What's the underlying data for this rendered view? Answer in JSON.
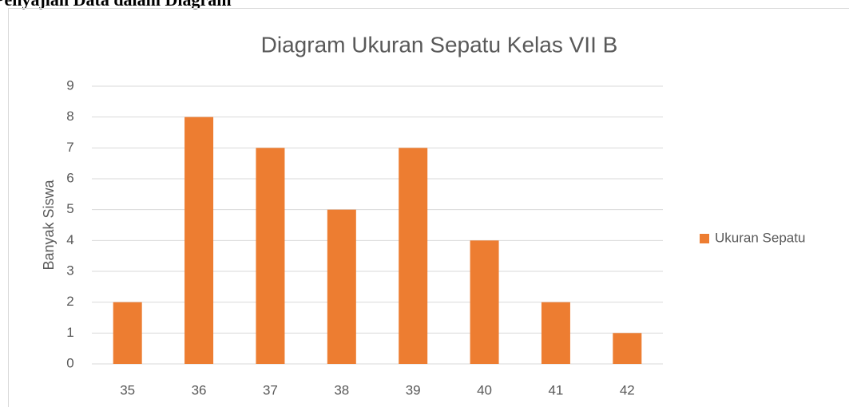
{
  "heading": "Penyajian Data dalam Diagram",
  "chart_data": {
    "type": "bar",
    "title": "Diagram Ukuran Sepatu Kelas VII B",
    "ylabel": "Banyak Siswa",
    "categories": [
      "35",
      "36",
      "37",
      "38",
      "39",
      "40",
      "41",
      "42"
    ],
    "series": [
      {
        "name": "Ukuran Sepatu",
        "color": "#ed7d31",
        "values": [
          2,
          8,
          7,
          5,
          7,
          4,
          2,
          1
        ]
      }
    ],
    "ylim": [
      0,
      9
    ],
    "yticks": [
      0,
      1,
      2,
      3,
      4,
      5,
      6,
      7,
      8,
      9
    ],
    "grid": true,
    "legend": "right"
  }
}
